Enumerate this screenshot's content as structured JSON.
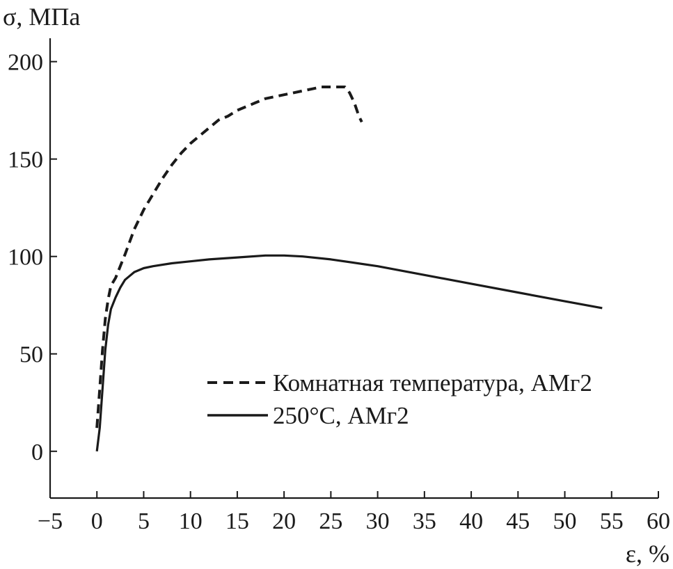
{
  "chart_data": {
    "type": "line",
    "xlabel": "ε, %",
    "ylabel": "σ, МПа",
    "xlim": [
      -5,
      60
    ],
    "ylim": [
      -24,
      212
    ],
    "xticks": [
      -5,
      0,
      5,
      10,
      15,
      20,
      25,
      30,
      35,
      40,
      45,
      50,
      55,
      60
    ],
    "yticks": [
      0,
      50,
      100,
      150,
      200
    ],
    "grid": false,
    "legend_position": "lower-right",
    "series": [
      {
        "name": "Комнатная температура, АМг2",
        "style": "dashed",
        "color": "#1a1a1a",
        "x": [
          0,
          0.3,
          0.6,
          0.9,
          1.2,
          1.5,
          2,
          2.5,
          3,
          4,
          5,
          6,
          7,
          8,
          9,
          10,
          11,
          12,
          13,
          14,
          15,
          16,
          17,
          18,
          19,
          20,
          21,
          22,
          23,
          24,
          25,
          26,
          26.5,
          27,
          27.5,
          28,
          28.3
        ],
        "y": [
          12,
          32,
          52,
          68,
          78,
          85,
          89,
          95,
          101,
          114,
          124,
          132,
          140,
          147,
          153,
          158,
          162,
          166,
          170,
          172,
          175,
          177,
          179,
          181,
          182,
          183,
          184,
          185,
          186,
          187,
          187,
          187,
          187,
          184,
          179,
          172,
          169
        ]
      },
      {
        "name": "250°C, АМг2",
        "style": "solid",
        "color": "#1a1a1a",
        "x": [
          0,
          0.3,
          0.6,
          0.9,
          1.2,
          1.5,
          2,
          2.5,
          3,
          3.5,
          4,
          5,
          6,
          8,
          10,
          12,
          15,
          18,
          20,
          22,
          25,
          30,
          35,
          40,
          45,
          50,
          54
        ],
        "y": [
          0,
          12,
          32,
          52,
          65,
          73,
          79,
          84,
          88,
          90,
          92,
          94,
          95,
          96.5,
          97.5,
          98.5,
          99.5,
          100.5,
          100.5,
          100,
          98.5,
          95,
          90.5,
          86,
          81.5,
          77,
          73.5
        ]
      }
    ]
  }
}
